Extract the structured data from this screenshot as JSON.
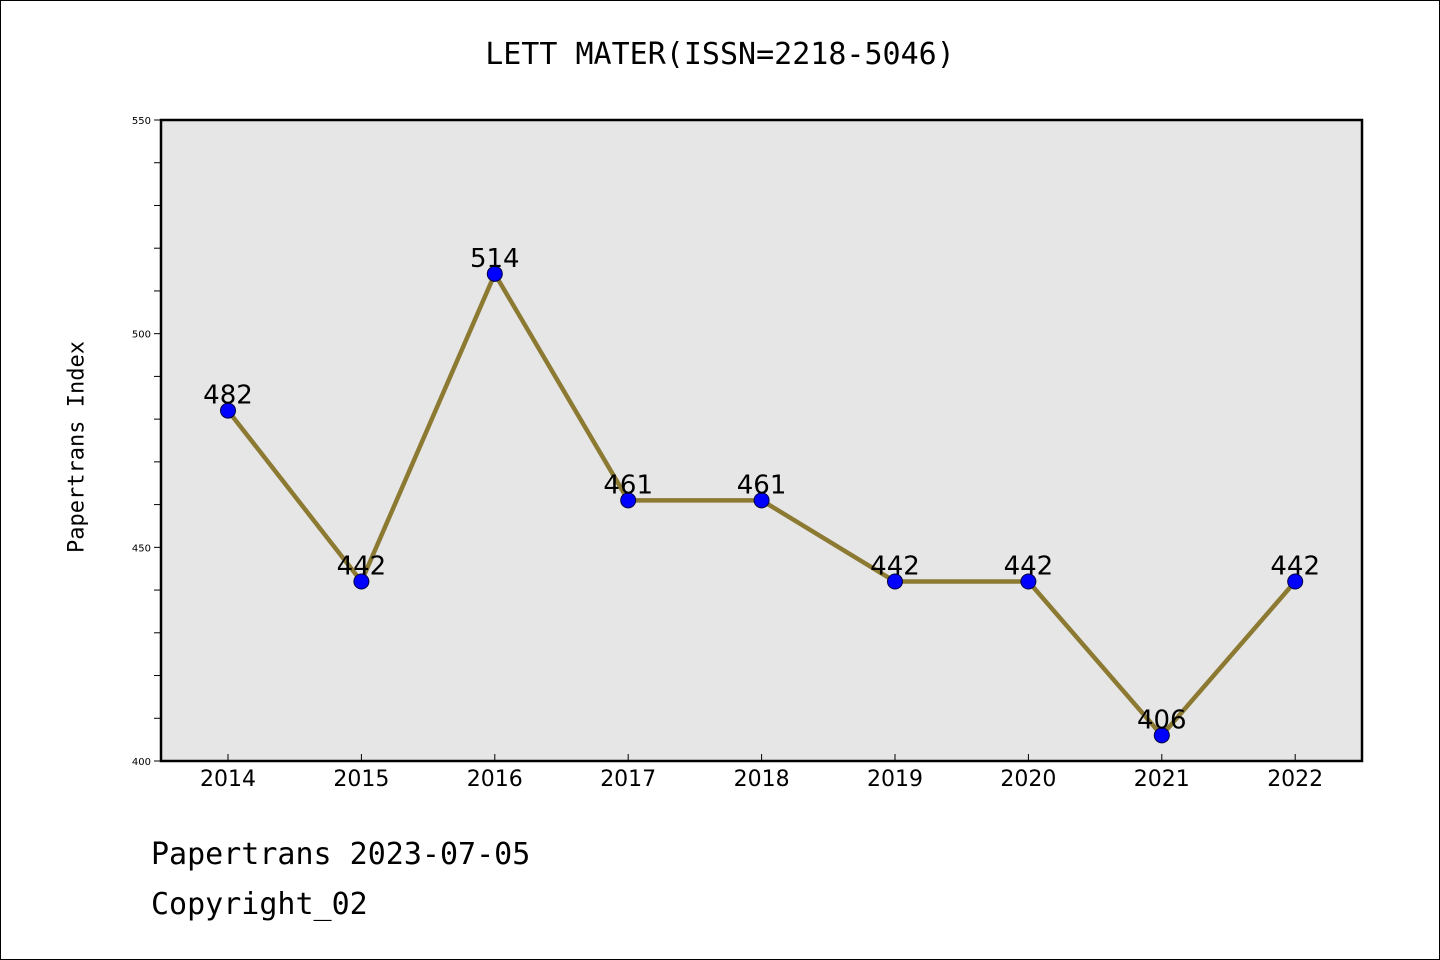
{
  "chart_data": {
    "type": "line",
    "title": "LETT MATER(ISSN=2218-5046)",
    "xlabel": "",
    "ylabel": "Papertrans Index",
    "categories": [
      "2014",
      "2015",
      "2016",
      "2017",
      "2018",
      "2019",
      "2020",
      "2021",
      "2022"
    ],
    "series": [
      {
        "values": [
          482,
          442,
          514,
          461,
          461,
          442,
          442,
          406,
          442
        ]
      }
    ],
    "ylim": [
      400,
      550
    ],
    "yticks": [
      400,
      450,
      500,
      550
    ],
    "grid": false,
    "line_color": "#8c7a32",
    "marker_color": "#0000ff",
    "background_color": "#e6e6e6"
  },
  "footer": {
    "date_text": "Papertrans 2023-07-05",
    "copyright_text": "Copyright_02"
  }
}
